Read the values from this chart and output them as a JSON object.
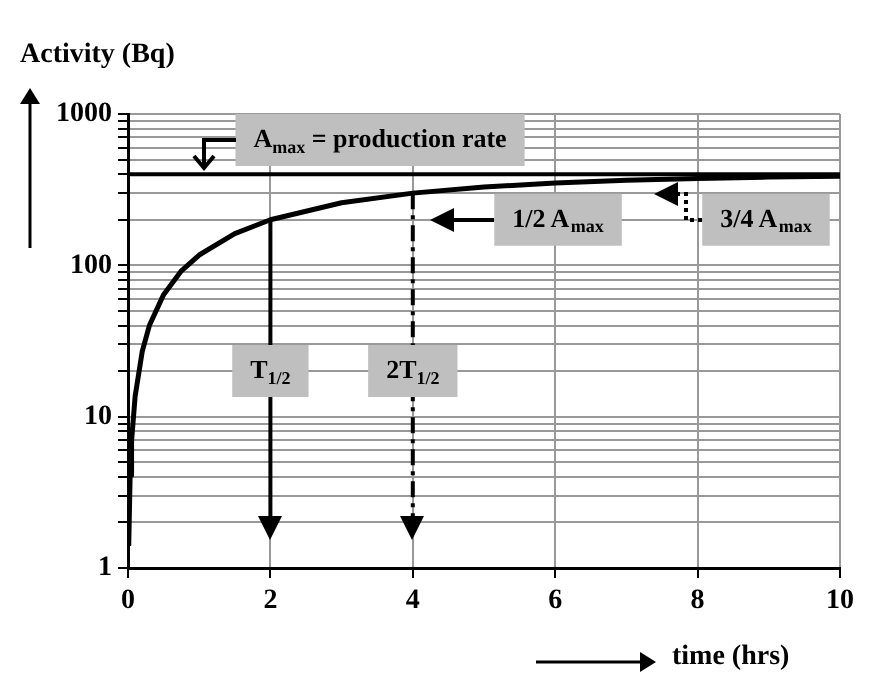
{
  "chart_data": {
    "type": "line",
    "xlabel": "time (hrs)",
    "ylabel": "Activity (Bq)",
    "series": [
      {
        "color": "#000000",
        "x": [
          0.01,
          0.03,
          0.05,
          0.1,
          0.2,
          0.3,
          0.5,
          0.75,
          1,
          1.5,
          2,
          3,
          4,
          5,
          6,
          7,
          8,
          9,
          10
        ],
        "values": [
          1.4,
          4.1,
          6.9,
          13.6,
          27,
          40,
          64,
          92,
          117,
          162,
          200,
          259,
          300,
          329,
          350,
          365,
          375,
          383,
          388
        ]
      }
    ],
    "xlim": [
      0,
      10
    ],
    "xticks": [
      0,
      2,
      4,
      6,
      8,
      10
    ],
    "ylim": [
      1,
      1000
    ],
    "yticks": [
      1,
      {
        "value": 2,
        "label": null
      },
      {
        "value": 3,
        "label": null
      },
      {
        "value": 4,
        "label": null
      },
      {
        "value": 5,
        "label": null
      },
      {
        "value": 6,
        "label": null
      },
      {
        "value": 7,
        "label": null
      },
      {
        "value": 8,
        "label": null
      },
      {
        "value": 9,
        "label": null
      },
      10,
      {
        "value": 20,
        "label": null
      },
      {
        "value": 30,
        "label": null
      },
      {
        "value": 40,
        "label": null
      },
      {
        "value": 50,
        "label": null
      },
      {
        "value": 60,
        "label": null
      },
      {
        "value": 70,
        "label": null
      },
      {
        "value": 80,
        "label": null
      },
      {
        "value": 90,
        "label": null
      },
      100,
      {
        "value": 200,
        "label": null
      },
      {
        "value": 300,
        "label": null
      },
      {
        "value": 400,
        "label": null
      },
      {
        "value": 500,
        "label": null
      },
      {
        "value": 600,
        "label": null
      },
      {
        "value": 700,
        "label": null
      },
      {
        "value": 800,
        "label": null
      },
      {
        "value": 900,
        "label": null
      },
      1000
    ],
    "log": "y",
    "grid": true,
    "legend": false,
    "marker": "none",
    "line_style": "solid",
    "ref_lines": [
      {
        "axis": "y",
        "value": 400,
        "color": "#000000"
      },
      {
        "axis": "x",
        "value": 2,
        "color": "#000000",
        "line_style": "solid"
      },
      {
        "axis": "x",
        "value": 4,
        "color": "#000000",
        "line_style": "dashed"
      }
    ],
    "annotations": [
      "A$_{max}$ = production rate",
      "1/2 A$_{max}$",
      "3/4 A$_{max}$",
      {
        "text": "T$_{1/2}$",
        "x": 2,
        "y": 20
      },
      {
        "text": "2T$_{1/2}$",
        "x": 4,
        "y": 20
      }
    ]
  }
}
